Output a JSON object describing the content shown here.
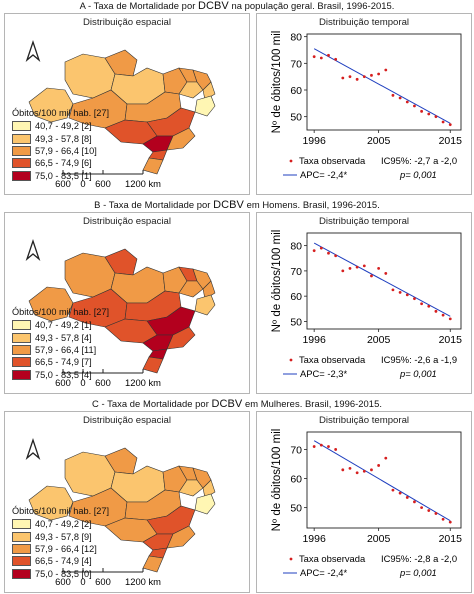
{
  "panels": [
    {
      "title_prefix": "A - Taxa de Mortalidade por",
      "title_mid": "DCBV",
      "title_suffix": "na população geral. Brasil, 1996-2015.",
      "map_title": "Distribuição espacial",
      "plot_title": "Distribuição temporal",
      "legend_title": "Óbitos/100 mil hab. [27]",
      "legend": [
        "40,7 - 49,2 [2]",
        "49,3 - 57,8 [8]",
        "57,9 - 66,4 [10]",
        "66,5 - 74,9 [6]",
        "75,0 - 83,5 [1]"
      ],
      "scale_labels": [
        "600",
        "0",
        "600",
        "1200 km"
      ],
      "stats": {
        "observed_label": "Taxa observada",
        "apc_label": "APC= -2,4*",
        "ci_label": "IC95%: -2,7 a -2,0",
        "p_label": "p= 0,001"
      }
    },
    {
      "title_prefix": "B - Taxa de Mortalidade por",
      "title_mid": "DCBV",
      "title_suffix": "em Homens. Brasil, 1996-2015.",
      "map_title": "Distribuição espacial",
      "plot_title": "Distribuição temporal",
      "legend_title": "Óbitos/100 mil hab. [27]",
      "legend": [
        "40,7 - 49,2 [1]",
        "49,3 - 57,8 [4]",
        "57,9 - 66,4 [11]",
        "66,5 - 74,9 [7]",
        "75,0 - 83,5 [4]"
      ],
      "scale_labels": [
        "600",
        "0",
        "600",
        "1200 km"
      ],
      "stats": {
        "observed_label": "Taxa observada",
        "apc_label": "APC= -2,3*",
        "ci_label": "IC95%: -2,6 a -1,9",
        "p_label": "p= 0,001"
      }
    },
    {
      "title_prefix": "C - Taxa de Mortalidade por",
      "title_mid": "DCBV",
      "title_suffix": "em Mulheres. Brasil, 1996-2015.",
      "map_title": "Distribuição espacial",
      "plot_title": "Distribuição temporal",
      "legend_title": "Óbitos/100 mil hab. [27]",
      "legend": [
        "40,7 - 49,2 [2]",
        "49,3 - 57,8 [9]",
        "57,9 - 66,4 [12]",
        "66,5 - 74,9 [4]",
        "75,0 - 83,5 [0]"
      ],
      "scale_labels": [
        "600",
        "0",
        "600",
        "1200 km"
      ],
      "stats": {
        "observed_label": "Taxa observada",
        "apc_label": "APC= -2,4*",
        "ci_label": "IC95%: -2,8 a -2,0",
        "p_label": "p= 0,001"
      }
    }
  ],
  "legend_colors": [
    "#fff6b3",
    "#fbc56e",
    "#f09a46",
    "#e0532a",
    "#b3001e"
  ],
  "map_state_colors": {
    "A": [
      "#fbc56e",
      "#fbc56e",
      "#f09a46",
      "#fbc56e",
      "#f09a46",
      "#f09a46",
      "#fbc56e",
      "#f09a46",
      "#fbc56e",
      "#fff6b3",
      "#f09a46",
      "#f09a46",
      "#e0532a",
      "#e0532a",
      "#b3001e",
      "#f09a46",
      "#e0532a",
      "#f09a46"
    ],
    "B": [
      "#f09a46",
      "#f09a46",
      "#e0532a",
      "#f09a46",
      "#f09a46",
      "#e0532a",
      "#f09a46",
      "#f09a46",
      "#f09a46",
      "#fbc56e",
      "#e0532a",
      "#e0532a",
      "#b3001e",
      "#e0532a",
      "#b3001e",
      "#e0532a",
      "#b3001e",
      "#e0532a"
    ],
    "C": [
      "#fbc56e",
      "#fbc56e",
      "#f09a46",
      "#fbc56e",
      "#f09a46",
      "#f09a46",
      "#fbc56e",
      "#f09a46",
      "#fbc56e",
      "#fff6b3",
      "#f09a46",
      "#f09a46",
      "#e0532a",
      "#f09a46",
      "#e0532a",
      "#f09a46",
      "#e0532a",
      "#f09a46"
    ]
  },
  "chart_data": [
    {
      "type": "scatter",
      "title": "Distribuição temporal",
      "xlabel": "",
      "ylabel": "Nº de óbitos/100 mil",
      "xlim": [
        1995,
        2016.5
      ],
      "ylim": [
        45,
        81
      ],
      "xticks": [
        1996,
        2005,
        2015
      ],
      "yticks": [
        50,
        60,
        70,
        80
      ],
      "x": [
        1996,
        1997,
        1998,
        1999,
        2000,
        2001,
        2002,
        2003,
        2004,
        2005,
        2006,
        2007,
        2008,
        2009,
        2010,
        2011,
        2012,
        2013,
        2014,
        2015
      ],
      "series": [
        {
          "name": "Taxa observada",
          "values": [
            72.5,
            72.0,
            73.0,
            71.5,
            64.5,
            65.0,
            64.0,
            65.0,
            65.5,
            66.0,
            67.5,
            58.0,
            57.0,
            55.5,
            54.0,
            52.0,
            51.0,
            50.0,
            48.0,
            47.0
          ]
        },
        {
          "name": "APC= -2,4*",
          "line_endpoints": [
            [
              1996,
              75.5
            ],
            [
              2015,
              47.5
            ]
          ]
        }
      ]
    },
    {
      "type": "scatter",
      "title": "Distribuição temporal",
      "xlabel": "",
      "ylabel": "Nº de óbitos/100 mil",
      "xlim": [
        1995,
        2016.5
      ],
      "ylim": [
        47,
        85
      ],
      "xticks": [
        1996,
        2005,
        2015
      ],
      "yticks": [
        50,
        60,
        70,
        80
      ],
      "x": [
        1996,
        1997,
        1998,
        1999,
        2000,
        2001,
        2002,
        2003,
        2004,
        2005,
        2006,
        2007,
        2008,
        2009,
        2010,
        2011,
        2012,
        2013,
        2014,
        2015
      ],
      "series": [
        {
          "name": "Taxa observada",
          "values": [
            78.0,
            79.0,
            77.0,
            76.0,
            70.0,
            71.0,
            71.5,
            72.0,
            68.0,
            71.0,
            69.0,
            62.5,
            61.5,
            60.5,
            59.0,
            57.0,
            56.0,
            54.0,
            52.5,
            51.0
          ]
        },
        {
          "name": "APC= -2,3*",
          "line_endpoints": [
            [
              1996,
              81.0
            ],
            [
              2015,
              52.0
            ]
          ]
        }
      ]
    },
    {
      "type": "scatter",
      "title": "Distribuição temporal",
      "xlabel": "",
      "ylabel": "Nº de óbitos/100 mil",
      "xlim": [
        1995,
        2016.5
      ],
      "ylim": [
        43,
        76
      ],
      "xticks": [
        1996,
        2005,
        2015
      ],
      "yticks": [
        50,
        60,
        70
      ],
      "x": [
        1996,
        1997,
        1998,
        1999,
        2000,
        2001,
        2002,
        2003,
        2004,
        2005,
        2006,
        2007,
        2008,
        2009,
        2010,
        2011,
        2012,
        2013,
        2014,
        2015
      ],
      "series": [
        {
          "name": "Taxa observada",
          "values": [
            71.0,
            71.5,
            71.0,
            70.0,
            63.0,
            63.5,
            62.0,
            62.5,
            63.0,
            64.5,
            67.0,
            56.0,
            55.0,
            53.5,
            52.0,
            50.0,
            49.0,
            48.0,
            46.0,
            45.0
          ]
        },
        {
          "name": "APC= -2,4*",
          "line_endpoints": [
            [
              1996,
              73.0
            ],
            [
              2015,
              45.5
            ]
          ]
        }
      ]
    }
  ]
}
